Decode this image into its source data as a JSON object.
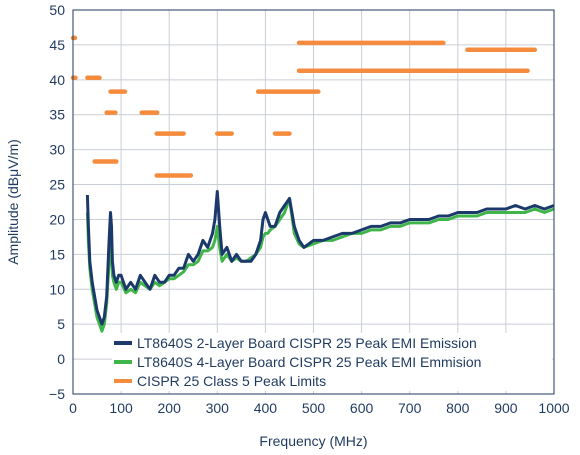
{
  "chart_data": {
    "type": "line",
    "xlabel": "Frequency (MHz)",
    "ylabel": "Amplitude (dBμV/m)",
    "xlim": [
      0,
      1000
    ],
    "ylim": [
      -5,
      50
    ],
    "xticks": [
      0,
      100,
      200,
      300,
      400,
      500,
      600,
      700,
      800,
      900,
      1000
    ],
    "yticks": [
      -5,
      0,
      5,
      10,
      15,
      20,
      25,
      30,
      35,
      40,
      45,
      50
    ],
    "grid": true,
    "legend_position": "bottom-center",
    "series": [
      {
        "name": "LT8640S 2-Layer Board CISPR 25 Peak EMI Emission",
        "color": "#1b3a6b",
        "x": [
          30,
          32,
          35,
          40,
          45,
          50,
          55,
          60,
          65,
          70,
          75,
          78,
          80,
          82,
          85,
          90,
          95,
          100,
          110,
          120,
          130,
          140,
          150,
          160,
          170,
          180,
          190,
          200,
          210,
          220,
          230,
          240,
          250,
          260,
          270,
          280,
          290,
          295,
          300,
          305,
          310,
          320,
          330,
          340,
          350,
          360,
          370,
          380,
          390,
          395,
          400,
          405,
          410,
          420,
          430,
          440,
          450,
          460,
          470,
          480,
          500,
          520,
          540,
          560,
          580,
          600,
          620,
          640,
          660,
          680,
          700,
          720,
          740,
          760,
          780,
          800,
          820,
          840,
          860,
          880,
          900,
          920,
          940,
          960,
          980,
          1000
        ],
        "y": [
          23.5,
          19,
          14,
          11,
          9,
          7,
          6,
          5,
          6,
          9,
          17,
          21,
          19,
          14,
          12,
          11,
          12,
          12,
          10,
          11,
          10,
          12,
          11,
          10,
          12,
          11,
          11,
          12,
          12,
          13,
          13,
          15,
          14,
          15,
          17,
          16,
          18,
          20,
          24,
          19,
          15,
          16,
          14,
          15,
          14,
          14,
          14,
          15,
          17,
          20,
          21,
          20,
          19,
          19,
          21,
          22,
          23,
          19,
          17,
          16,
          17,
          17,
          17.5,
          18,
          18,
          18.5,
          19,
          19,
          19.5,
          19.5,
          20,
          20,
          20,
          20.5,
          20.5,
          21,
          21,
          21,
          21.5,
          21.5,
          21.5,
          22,
          21.5,
          22,
          21.5,
          22
        ]
      },
      {
        "name": "LT8640S 4-Layer Board CISPR 25 Peak EMI Emmision",
        "color": "#3fb54a",
        "x": [
          30,
          32,
          35,
          40,
          45,
          50,
          55,
          60,
          65,
          70,
          75,
          78,
          80,
          82,
          85,
          90,
          95,
          100,
          110,
          120,
          130,
          140,
          150,
          160,
          170,
          180,
          190,
          200,
          210,
          220,
          230,
          240,
          250,
          260,
          270,
          280,
          290,
          295,
          300,
          305,
          310,
          320,
          330,
          340,
          350,
          360,
          370,
          380,
          390,
          395,
          400,
          405,
          410,
          420,
          430,
          440,
          450,
          460,
          470,
          480,
          500,
          520,
          540,
          560,
          580,
          600,
          620,
          640,
          660,
          680,
          700,
          720,
          740,
          760,
          780,
          800,
          820,
          840,
          860,
          880,
          900,
          920,
          940,
          960,
          980,
          1000
        ],
        "y": [
          21,
          17,
          13,
          10,
          8,
          6,
          5,
          4,
          5,
          8,
          14,
          17,
          15,
          12,
          11,
          10,
          11,
          11,
          9.5,
          10,
          9.5,
          11,
          10.5,
          10,
          11,
          10.5,
          11,
          11.5,
          11.5,
          12,
          12.5,
          13.5,
          13.5,
          14,
          15.5,
          15.5,
          16,
          17,
          19,
          16,
          14,
          15,
          14,
          14.5,
          14,
          14,
          14.5,
          15,
          16,
          17.5,
          18,
          18,
          18.5,
          19,
          20,
          21,
          23,
          18,
          16.5,
          16,
          16.5,
          17,
          17,
          17.5,
          18,
          18,
          18.5,
          18.5,
          19,
          19,
          19.5,
          19.5,
          19.5,
          20,
          20,
          20.5,
          20.5,
          20.5,
          21,
          21,
          21,
          21,
          21,
          21.5,
          21,
          21.5
        ]
      },
      {
        "name": "CISPR 25 Class 5 Peak Limits",
        "color": "#f58b3c",
        "segments": [
          {
            "x": [
              0,
              0
            ],
            "y": [
              46,
              46
            ]
          },
          {
            "x": [
              0,
              5
            ],
            "y": [
              40.3,
              40.3
            ]
          },
          {
            "x": [
              30,
              55
            ],
            "y": [
              40.3,
              40.3
            ]
          },
          {
            "x": [
              45,
              90
            ],
            "y": [
              28.3,
              28.3
            ]
          },
          {
            "x": [
              70,
              88
            ],
            "y": [
              35.3,
              35.3
            ]
          },
          {
            "x": [
              78,
              108
            ],
            "y": [
              38.3,
              38.3
            ]
          },
          {
            "x": [
              143,
              175
            ],
            "y": [
              35.3,
              35.3
            ]
          },
          {
            "x": [
              174,
              230
            ],
            "y": [
              32.3,
              32.3
            ]
          },
          {
            "x": [
              174,
              245
            ],
            "y": [
              26.3,
              26.3
            ]
          },
          {
            "x": [
              300,
              330
            ],
            "y": [
              32.3,
              32.3
            ]
          },
          {
            "x": [
              385,
              510
            ],
            "y": [
              38.3,
              38.3
            ]
          },
          {
            "x": [
              420,
              450
            ],
            "y": [
              32.3,
              32.3
            ]
          },
          {
            "x": [
              470,
              770
            ],
            "y": [
              45.3,
              45.3
            ]
          },
          {
            "x": [
              470,
              945
            ],
            "y": [
              41.3,
              41.3
            ]
          },
          {
            "x": [
              820,
              960
            ],
            "y": [
              44.3,
              44.3
            ]
          }
        ]
      }
    ]
  }
}
